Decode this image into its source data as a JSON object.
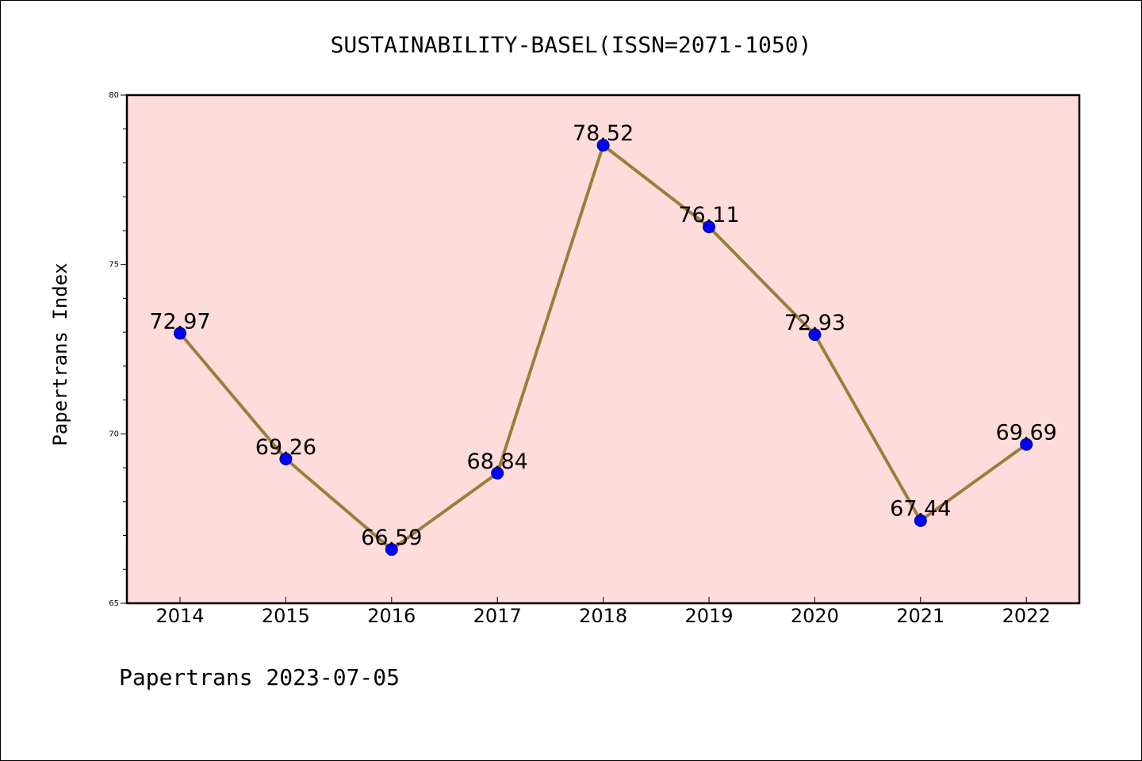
{
  "chart_data": {
    "type": "line",
    "title": "SUSTAINABILITY-BASEL(ISSN=2071-1050)",
    "ylabel": "Papertrans Index",
    "xlabel": "",
    "categories": [
      "2014",
      "2015",
      "2016",
      "2017",
      "2018",
      "2019",
      "2020",
      "2021",
      "2022"
    ],
    "values": [
      72.97,
      69.26,
      66.59,
      68.84,
      78.52,
      76.11,
      72.93,
      67.44,
      69.69
    ],
    "data_labels": [
      "72.97",
      "69.26",
      "66.59",
      "68.84",
      "78.52",
      "76.11",
      "72.93",
      "67.44",
      "69.69"
    ],
    "ylim": [
      65,
      80
    ],
    "yticks": [
      65,
      70,
      75,
      80
    ],
    "ytick_labels": [
      "65",
      "70",
      "75",
      "80"
    ],
    "grid": false,
    "legend": "none",
    "colors": {
      "plot_background": "#ffdcdc",
      "line": "#9a7f3c",
      "marker": "#0000ff",
      "marker_edge": "#00008b"
    }
  },
  "footer": {
    "text": "Papertrans 2023-07-05"
  }
}
